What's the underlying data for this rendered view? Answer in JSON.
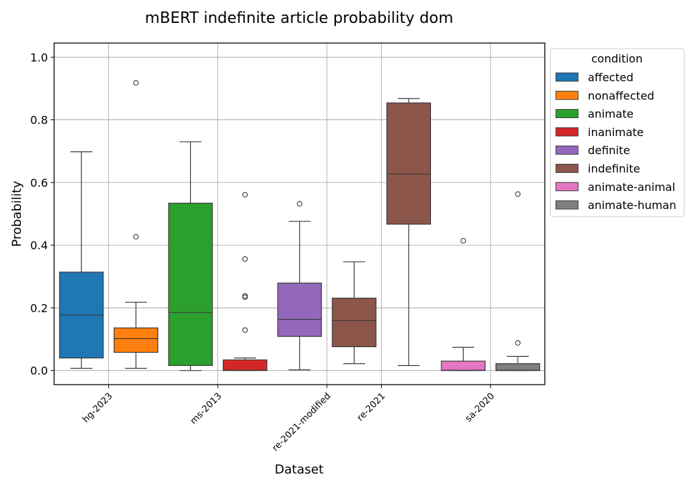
{
  "chart_data": {
    "type": "box",
    "title": "mBERT indefinite article probability dom",
    "xlabel": "Dataset",
    "ylabel": "Probability",
    "ylim": [
      -0.045,
      1.045
    ],
    "yticks": [
      0.0,
      0.2,
      0.4,
      0.6,
      0.8,
      1.0
    ],
    "ytick_labels": [
      "0.0",
      "0.2",
      "0.4",
      "0.6",
      "0.8",
      "1.0"
    ],
    "grid": true,
    "legend": {
      "title": "condition",
      "placement": "outside-right",
      "entries": [
        {
          "name": "affected",
          "color": "#1f77b4"
        },
        {
          "name": "nonaffected",
          "color": "#ff7f0e"
        },
        {
          "name": "animate",
          "color": "#2ca02c"
        },
        {
          "name": "inanimate",
          "color": "#d62728"
        },
        {
          "name": "definite",
          "color": "#9467bd"
        },
        {
          "name": "indefinite",
          "color": "#8c564b"
        },
        {
          "name": "animate-animal",
          "color": "#e377c2"
        },
        {
          "name": "animate-human",
          "color": "#7f7f7f"
        }
      ]
    },
    "categories": [
      "hg-2023",
      "ms-2013",
      "re-2021-modified",
      "re-2021",
      "sa-2020"
    ],
    "boxes": [
      {
        "condition": "affected",
        "category_slot": 0,
        "whislo": 0.007,
        "q1": 0.04,
        "med": 0.177,
        "q3": 0.314,
        "whishi": 0.698,
        "fliers": []
      },
      {
        "condition": "nonaffected",
        "category_slot": 1,
        "whislo": 0.007,
        "q1": 0.058,
        "med": 0.102,
        "q3": 0.136,
        "whishi": 0.218,
        "fliers": [
          0.427,
          0.918
        ]
      },
      {
        "condition": "animate",
        "category_slot": 2,
        "whislo": 0.0,
        "q1": 0.016,
        "med": 0.185,
        "q3": 0.534,
        "whishi": 0.73,
        "fliers": []
      },
      {
        "condition": "inanimate",
        "category_slot": 3,
        "whislo": 0.0,
        "q1": 0.0,
        "med": 0.001,
        "q3": 0.034,
        "whishi": 0.04,
        "fliers": [
          0.129,
          0.234,
          0.238,
          0.356,
          0.561
        ]
      },
      {
        "condition": "definite",
        "category_slot": 4,
        "whislo": 0.002,
        "q1": 0.109,
        "med": 0.163,
        "q3": 0.279,
        "whishi": 0.476,
        "fliers": [
          0.532
        ]
      },
      {
        "condition": "indefinite",
        "category_slot": 5,
        "whislo": 0.022,
        "q1": 0.076,
        "med": 0.16,
        "q3": 0.231,
        "whishi": 0.347,
        "fliers": []
      },
      {
        "condition": "indefinite",
        "category_slot": 6,
        "whislo": 0.016,
        "q1": 0.467,
        "med": 0.627,
        "q3": 0.854,
        "whishi": 0.868,
        "fliers": []
      },
      {
        "condition": "animate-animal",
        "category_slot": 7,
        "whislo": 0.0,
        "q1": 0.0,
        "med": 0.001,
        "q3": 0.03,
        "whishi": 0.074,
        "fliers": [
          0.414
        ]
      },
      {
        "condition": "animate-human",
        "category_slot": 8,
        "whislo": 0.0,
        "q1": 0.0,
        "med": 0.001,
        "q3": 0.022,
        "whishi": 0.045,
        "fliers": [
          0.088,
          0.563
        ]
      }
    ],
    "category_tick_slots": [
      0.5,
      2.5,
      4.5,
      5.5,
      7.5
    ]
  }
}
